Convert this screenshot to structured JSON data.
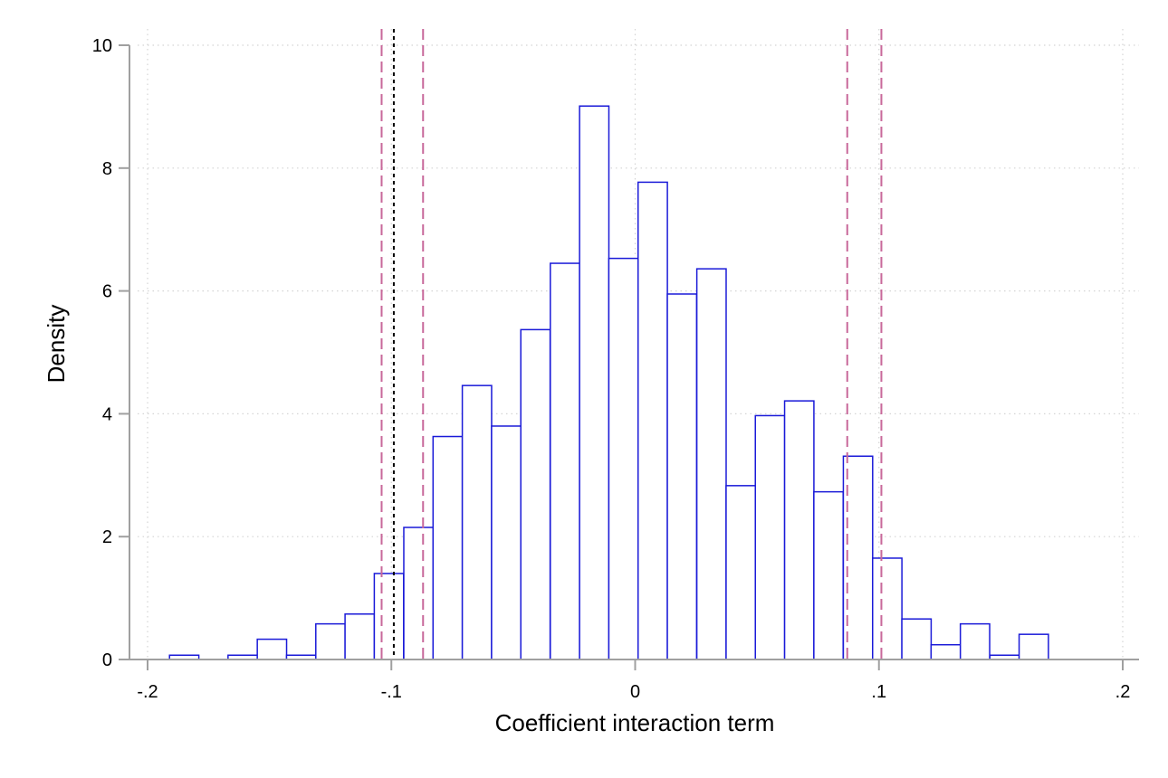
{
  "chart_data": {
    "type": "bar",
    "subtype": "histogram",
    "title": "",
    "xlabel": "Coefficient interaction term",
    "ylabel": "Density",
    "xlim": [
      -0.2,
      0.2
    ],
    "ylim": [
      0,
      10
    ],
    "xticks": [
      -0.2,
      -0.1,
      0,
      0.1,
      0.2
    ],
    "xtick_labels": [
      "-.2",
      "-.1",
      "0",
      ".1",
      ".2"
    ],
    "yticks": [
      0,
      2,
      4,
      6,
      8,
      10
    ],
    "ytick_labels": [
      "0",
      "2",
      "4",
      "6",
      "8",
      "10"
    ],
    "grid": true,
    "bin_width": 0.01202,
    "bins": [
      {
        "x0": -0.191,
        "density": 0.07
      },
      {
        "x0": -0.167,
        "density": 0.07
      },
      {
        "x0": -0.155,
        "density": 0.33
      },
      {
        "x0": -0.143,
        "density": 0.07
      },
      {
        "x0": -0.131,
        "density": 0.58
      },
      {
        "x0": -0.119,
        "density": 0.74
      },
      {
        "x0": -0.107,
        "density": 1.4
      },
      {
        "x0": -0.0949,
        "density": 2.15
      },
      {
        "x0": -0.0829,
        "density": 3.63
      },
      {
        "x0": -0.0709,
        "density": 4.46
      },
      {
        "x0": -0.0589,
        "density": 3.8
      },
      {
        "x0": -0.0469,
        "density": 5.37
      },
      {
        "x0": -0.0348,
        "density": 6.45
      },
      {
        "x0": -0.0228,
        "density": 9.01
      },
      {
        "x0": -0.0108,
        "density": 6.53
      },
      {
        "x0": 0.0012,
        "density": 7.77
      },
      {
        "x0": 0.0132,
        "density": 5.95
      },
      {
        "x0": 0.0253,
        "density": 6.36
      },
      {
        "x0": 0.0373,
        "density": 2.83
      },
      {
        "x0": 0.0493,
        "density": 3.97
      },
      {
        "x0": 0.0613,
        "density": 4.21
      },
      {
        "x0": 0.0733,
        "density": 2.73
      },
      {
        "x0": 0.0854,
        "density": 3.31
      },
      {
        "x0": 0.0974,
        "density": 1.65
      },
      {
        "x0": 0.1094,
        "density": 0.66
      },
      {
        "x0": 0.1214,
        "density": 0.24
      },
      {
        "x0": 0.1334,
        "density": 0.58
      },
      {
        "x0": 0.1455,
        "density": 0.07
      },
      {
        "x0": 0.1575,
        "density": 0.41
      }
    ],
    "reference_lines": [
      {
        "x": -0.104,
        "style": "dashed",
        "color": "#c8689a"
      },
      {
        "x": -0.087,
        "style": "dashed",
        "color": "#c8689a"
      },
      {
        "x": 0.087,
        "style": "dashed",
        "color": "#c8689a"
      },
      {
        "x": 0.101,
        "style": "dashed",
        "color": "#c8689a"
      },
      {
        "x": -0.099,
        "style": "dotted",
        "color": "#000000"
      }
    ],
    "colors": {
      "bar_fill": "#ffffff",
      "bar_edge": "#1a1ad8",
      "axis": "#a0a0a0",
      "grid": "#d4d4d4"
    }
  }
}
